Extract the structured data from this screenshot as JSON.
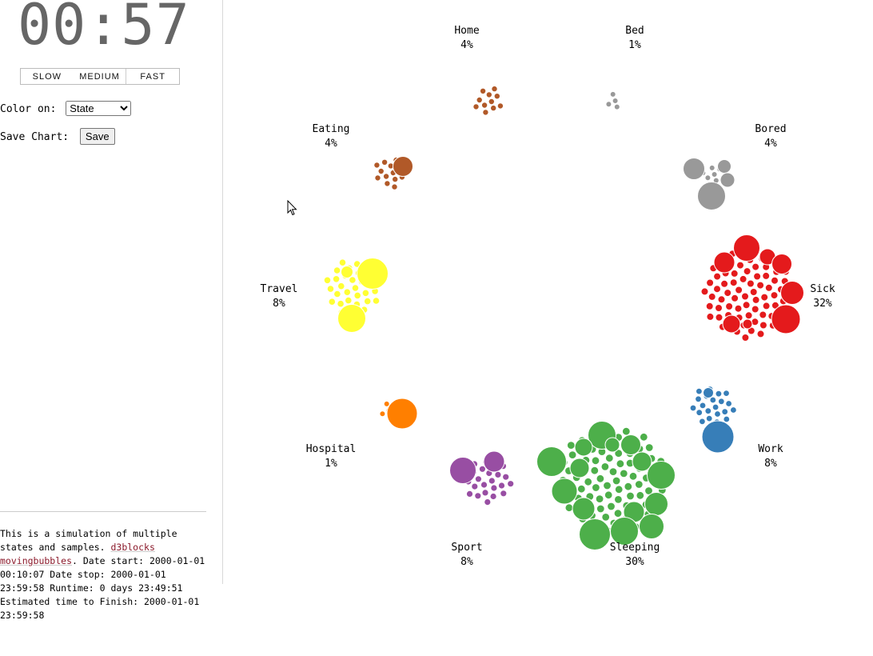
{
  "clock": "00:57",
  "speed_buttons": [
    "SLOW",
    "MEDIUM",
    "FAST"
  ],
  "color_on": {
    "label": "Color on:",
    "selected": "State"
  },
  "save_chart": {
    "label": "Save Chart:",
    "button": "Save"
  },
  "description": {
    "lead": "This is a simulation of multiple states and samples. ",
    "link1": "d3blocks",
    "link2": "movingbubbles",
    "tail": ". Date start: 2000-01-01 00:10:07 Date stop: 2000-01-01 23:59:58 Runtime: 0 days 23:49:51 Estimated time to Finish: 2000-01-01 23:59:58"
  },
  "states": [
    {
      "name": "Home",
      "pct": "4%",
      "color": "#b15928"
    },
    {
      "name": "Bed",
      "pct": "1%",
      "color": "#999999"
    },
    {
      "name": "Eating",
      "pct": "4%",
      "color": "#b15928"
    },
    {
      "name": "Bored",
      "pct": "4%",
      "color": "#999999"
    },
    {
      "name": "Travel",
      "pct": "8%",
      "color": "#ffff33"
    },
    {
      "name": "Sick",
      "pct": "32%",
      "color": "#e41a1c"
    },
    {
      "name": "Hospital",
      "pct": "1%",
      "color": "#ff7f00"
    },
    {
      "name": "Work",
      "pct": "8%",
      "color": "#377eb8"
    },
    {
      "name": "Sport",
      "pct": "8%",
      "color": "#984ea3"
    },
    {
      "name": "Sleeping",
      "pct": "30%",
      "color": "#4daf4a"
    }
  ]
}
